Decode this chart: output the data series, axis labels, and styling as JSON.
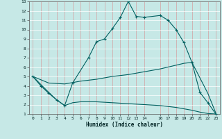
{
  "xlabel": "Humidex (Indice chaleur)",
  "bg_color": "#c6e8e6",
  "grid_color": "#b0d8d4",
  "line_color": "#006060",
  "xlim": [
    -0.5,
    23.5
  ],
  "ylim": [
    1,
    13
  ],
  "xticks": [
    0,
    1,
    2,
    3,
    4,
    5,
    6,
    7,
    8,
    9,
    10,
    11,
    12,
    13,
    14,
    16,
    17,
    18,
    19,
    20,
    21,
    22,
    23
  ],
  "yticks": [
    1,
    2,
    3,
    4,
    5,
    6,
    7,
    8,
    9,
    10,
    11,
    12,
    13
  ],
  "curve1_x": [
    0,
    1,
    2,
    3,
    4,
    5,
    7,
    8,
    9,
    10,
    11,
    12,
    13,
    14,
    16,
    17,
    18,
    19,
    20,
    21,
    22,
    23
  ],
  "curve1_y": [
    5.0,
    4.0,
    3.2,
    2.5,
    1.9,
    4.3,
    7.0,
    8.7,
    9.0,
    10.1,
    11.3,
    13.0,
    11.4,
    11.3,
    11.5,
    11.0,
    10.0,
    8.6,
    6.5,
    3.3,
    2.2,
    1.0
  ],
  "curve2_x": [
    0,
    2,
    4,
    6,
    8,
    10,
    12,
    14,
    16,
    18,
    19,
    20,
    22,
    23
  ],
  "curve2_y": [
    5.0,
    4.3,
    4.2,
    4.5,
    4.7,
    5.0,
    5.2,
    5.5,
    5.8,
    6.2,
    6.4,
    6.5,
    3.2,
    1.1
  ],
  "curve3_x": [
    0,
    2,
    3,
    4,
    5,
    6,
    8,
    10,
    12,
    14,
    16,
    18,
    20,
    21,
    22,
    23
  ],
  "curve3_y": [
    5.0,
    3.3,
    2.5,
    1.9,
    2.2,
    2.3,
    2.3,
    2.2,
    2.1,
    2.0,
    1.9,
    1.7,
    1.4,
    1.2,
    1.05,
    1.0
  ]
}
